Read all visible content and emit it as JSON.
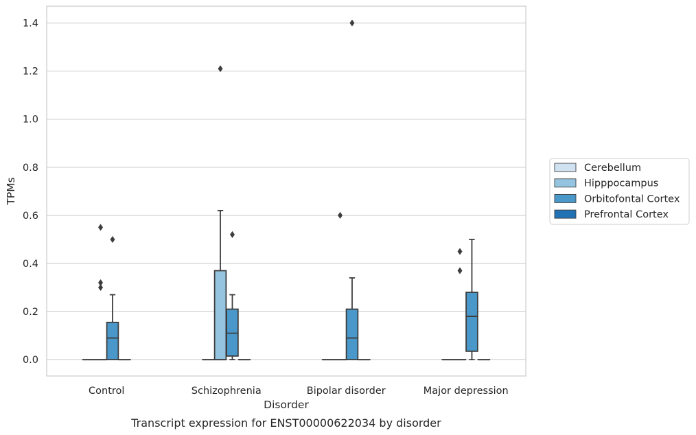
{
  "caption": "Transcript expression for ENST00000622034 by disorder",
  "chart_data": {
    "type": "box",
    "xlabel": "Disorder",
    "ylabel": "TPMs",
    "ylim": [
      -0.068,
      1.47
    ],
    "yticks": [
      "0.0",
      "0.2",
      "0.4",
      "0.6",
      "0.8",
      "1.0",
      "1.2",
      "1.4"
    ],
    "grid": "horizontal",
    "legend_position": "right",
    "categories": [
      "Control",
      "Schizophrenia",
      "Bipolar disorder",
      "Major depression"
    ],
    "series": [
      {
        "name": "Cerebellum",
        "color": "#d0e1f2",
        "boxes": [
          {
            "q1": 0,
            "median": 0,
            "q3": 0,
            "whisker_low": 0,
            "whisker_high": 0,
            "outliers": []
          },
          {
            "q1": 0,
            "median": 0,
            "q3": 0,
            "whisker_low": 0,
            "whisker_high": 0,
            "outliers": []
          },
          {
            "q1": 0,
            "median": 0,
            "q3": 0,
            "whisker_low": 0,
            "whisker_high": 0,
            "outliers": []
          },
          {
            "q1": 0,
            "median": 0,
            "q3": 0,
            "whisker_low": 0,
            "whisker_high": 0,
            "outliers": []
          }
        ]
      },
      {
        "name": "Hipppocampus",
        "color": "#94c4df",
        "boxes": [
          {
            "q1": 0,
            "median": 0,
            "q3": 0,
            "whisker_low": 0,
            "whisker_high": 0,
            "outliers": [
              0.55,
              0.32,
              0.3
            ]
          },
          {
            "q1": 0,
            "median": 0,
            "q3": 0.37,
            "whisker_low": 0,
            "whisker_high": 0.62,
            "outliers": [
              1.21
            ]
          },
          {
            "q1": 0,
            "median": 0,
            "q3": 0,
            "whisker_low": 0,
            "whisker_high": 0,
            "outliers": [
              0.6
            ]
          },
          {
            "q1": 0,
            "median": 0,
            "q3": 0,
            "whisker_low": 0,
            "whisker_high": 0,
            "outliers": [
              0.45,
              0.37
            ]
          }
        ]
      },
      {
        "name": "Orbitofontal Cortex",
        "color": "#4a98c9",
        "boxes": [
          {
            "q1": 0,
            "median": 0.09,
            "q3": 0.155,
            "whisker_low": 0,
            "whisker_high": 0.27,
            "outliers": [
              0.5
            ]
          },
          {
            "q1": 0.015,
            "median": 0.11,
            "q3": 0.21,
            "whisker_low": 0,
            "whisker_high": 0.27,
            "outliers": [
              0.52
            ]
          },
          {
            "q1": 0,
            "median": 0.09,
            "q3": 0.21,
            "whisker_low": 0,
            "whisker_high": 0.34,
            "outliers": [
              1.4
            ]
          },
          {
            "q1": 0.035,
            "median": 0.18,
            "q3": 0.28,
            "whisker_low": 0,
            "whisker_high": 0.5,
            "outliers": []
          }
        ]
      },
      {
        "name": "Prefrontal Cortex",
        "color": "#2171b5",
        "boxes": [
          {
            "q1": 0,
            "median": 0,
            "q3": 0,
            "whisker_low": 0,
            "whisker_high": 0,
            "outliers": []
          },
          {
            "q1": 0,
            "median": 0,
            "q3": 0,
            "whisker_low": 0,
            "whisker_high": 0,
            "outliers": []
          },
          {
            "q1": 0,
            "median": 0,
            "q3": 0,
            "whisker_low": 0,
            "whisker_high": 0,
            "outliers": []
          },
          {
            "q1": 0,
            "median": 0,
            "q3": 0,
            "whisker_low": 0,
            "whisker_high": 0,
            "outliers": []
          }
        ]
      }
    ]
  }
}
